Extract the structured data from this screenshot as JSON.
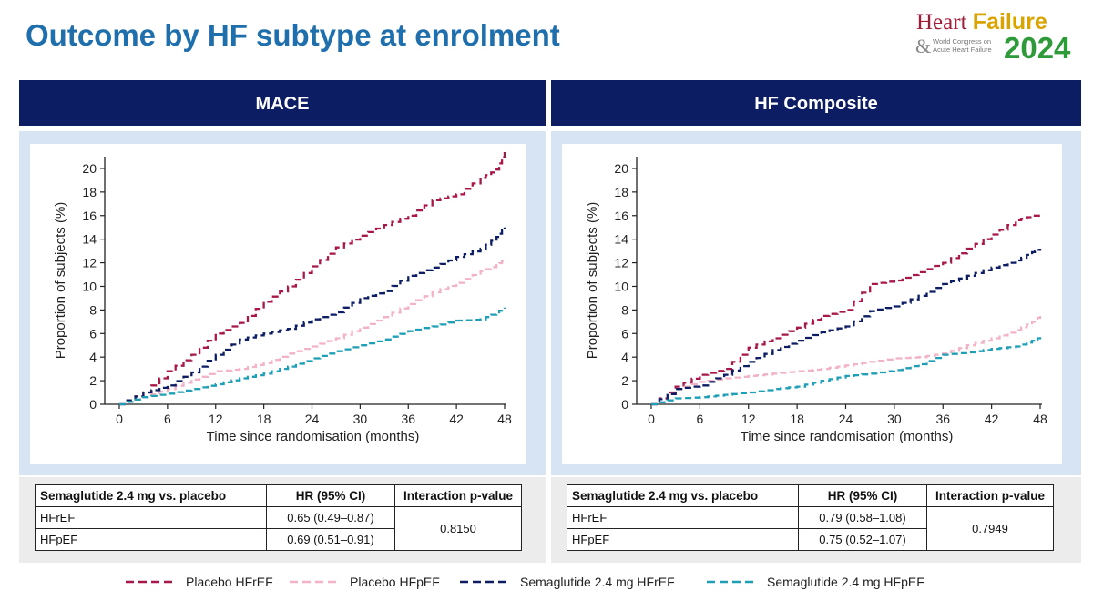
{
  "title": "Outcome by HF subtype at enrolment",
  "logo": {
    "word1": "Heart",
    "word2": "Failure",
    "amp": "&",
    "sub1": "World Congress on",
    "sub2": "Acute Heart Failure",
    "year": "2024"
  },
  "colors": {
    "placebo_hfref": "#a8174a",
    "placebo_hfpef": "#f2b3c6",
    "sema_hfref": "#0c1d63",
    "sema_hfpef": "#1f9fb6",
    "header_bg": "#0c1d63",
    "title": "#1f6fad"
  },
  "table_headers": [
    "Semaglutide 2.4 mg vs. placebo",
    "HR (95% CI)",
    "Interaction p-value"
  ],
  "panels": [
    {
      "header": "MACE",
      "rows": [
        {
          "label": "HFrEF",
          "hr": "0.65 (0.49–0.87)"
        },
        {
          "label": "HFpEF",
          "hr": "0.69 (0.51–0.91)"
        }
      ],
      "p_value": "0.8150"
    },
    {
      "header": "HF Composite",
      "rows": [
        {
          "label": "HFrEF",
          "hr": "0.79 (0.58–1.08)"
        },
        {
          "label": "HFpEF",
          "hr": "0.75 (0.52–1.07)"
        }
      ],
      "p_value": "0.7949"
    }
  ],
  "legend": [
    "Placebo HFrEF",
    "Placebo HFpEF",
    "Semaglutide 2.4 mg HFrEF",
    "Semaglutide 2.4 mg HFpEF"
  ],
  "chart_data": [
    {
      "type": "line",
      "title": "MACE",
      "xlabel": "Time since randomisation (months)",
      "ylabel": "Proportion of subjects (%)",
      "xlim": [
        0,
        48
      ],
      "ylim": [
        0,
        21
      ],
      "xticks": [
        0,
        6,
        12,
        18,
        24,
        30,
        36,
        42,
        48
      ],
      "yticks": [
        0,
        2,
        4,
        6,
        8,
        10,
        12,
        14,
        16,
        18,
        20
      ],
      "x": [
        0,
        3,
        6,
        9,
        12,
        15,
        18,
        21,
        24,
        27,
        30,
        33,
        36,
        39,
        42,
        45,
        47,
        48
      ],
      "series": [
        {
          "name": "Placebo HFrEF",
          "values": [
            0,
            1.0,
            2.8,
            4.2,
            6.0,
            6.9,
            8.7,
            10.0,
            11.7,
            13.3,
            14.3,
            15.2,
            16.0,
            17.3,
            17.8,
            19.2,
            19.9,
            21.5
          ]
        },
        {
          "name": "Placebo HFpEF",
          "values": [
            0,
            0.6,
            1.3,
            2.1,
            2.8,
            3.0,
            3.5,
            4.3,
            4.9,
            5.6,
            6.5,
            7.4,
            8.5,
            9.5,
            10.3,
            11.3,
            11.8,
            12.3
          ]
        },
        {
          "name": "Semaglutide 2.4 mg HFrEF",
          "values": [
            0,
            1.0,
            1.6,
            2.7,
            4.2,
            5.5,
            6.0,
            6.4,
            7.2,
            7.8,
            9.0,
            9.6,
            10.9,
            11.6,
            12.5,
            13.2,
            14.2,
            15.0
          ]
        },
        {
          "name": "Semaglutide 2.4 mg HFpEF",
          "values": [
            0,
            0.6,
            0.9,
            1.3,
            1.7,
            2.2,
            2.6,
            3.2,
            3.9,
            4.5,
            5.0,
            5.5,
            6.2,
            6.6,
            7.1,
            7.2,
            7.8,
            8.2
          ]
        }
      ]
    },
    {
      "type": "line",
      "title": "HF Composite",
      "xlabel": "Time since randomisation (months)",
      "ylabel": "Proportion of subjects (%)",
      "xlim": [
        0,
        48
      ],
      "ylim": [
        0,
        21
      ],
      "xticks": [
        0,
        6,
        12,
        18,
        24,
        30,
        36,
        42,
        48
      ],
      "yticks": [
        0,
        2,
        4,
        6,
        8,
        10,
        12,
        14,
        16,
        18,
        20
      ],
      "x": [
        0,
        3,
        6,
        9,
        12,
        15,
        18,
        21,
        24,
        27,
        30,
        33,
        36,
        39,
        42,
        45,
        47,
        48
      ],
      "series": [
        {
          "name": "Placebo HFrEF",
          "values": [
            0,
            1.5,
            2.5,
            3.0,
            4.8,
            5.6,
            6.5,
            7.5,
            8.0,
            10.2,
            10.5,
            11.2,
            12.0,
            13.2,
            14.4,
            15.6,
            16.0,
            16.0
          ]
        },
        {
          "name": "Placebo HFpEF",
          "values": [
            0,
            1.3,
            1.9,
            2.2,
            2.4,
            2.6,
            2.8,
            3.0,
            3.3,
            3.6,
            3.9,
            4.0,
            4.3,
            5.0,
            5.6,
            6.3,
            7.0,
            7.5
          ]
        },
        {
          "name": "Semaglutide 2.4 mg HFrEF",
          "values": [
            0,
            1.3,
            1.6,
            2.5,
            3.6,
            4.6,
            5.4,
            6.1,
            6.6,
            7.9,
            8.3,
            9.2,
            10.2,
            10.9,
            11.6,
            12.2,
            12.9,
            13.2
          ]
        },
        {
          "name": "Semaglutide 2.4 mg HFpEF",
          "values": [
            0,
            0.5,
            0.6,
            0.8,
            1.0,
            1.3,
            1.5,
            2.0,
            2.4,
            2.6,
            2.9,
            3.4,
            4.2,
            4.4,
            4.7,
            4.9,
            5.4,
            5.7
          ]
        }
      ]
    }
  ]
}
